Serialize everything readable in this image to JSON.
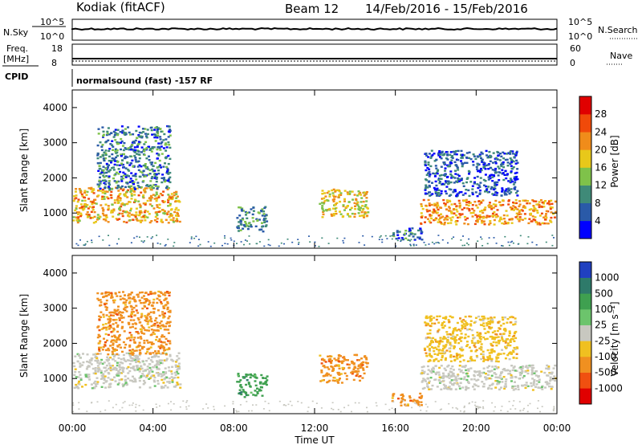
{
  "header": {
    "station": "Kodiak (fitACF)",
    "beam": "Beam 12",
    "date_range": "14/Feb/2016 - 15/Feb/2016"
  },
  "strip_panels": {
    "nsky_label": "N.Sky",
    "nsky_ticks": [
      "10^5",
      "10^0"
    ],
    "nsearch_label": "N.Search",
    "nsearch_ticks": [
      "10^5",
      "10^0"
    ],
    "freq_label_1": "Freq.",
    "freq_label_2": "[MHz]",
    "freq_ticks": [
      "18",
      "8"
    ],
    "nave_label": "Nave",
    "nave_ticks": [
      "60",
      "0"
    ],
    "cpid_label": "CPID",
    "cpid_value": "normalsound (fast) -157 RF"
  },
  "chart_data": [
    {
      "type": "heatmap",
      "panel": "power",
      "ylabel": "Slant Range [km]",
      "xlabel": "",
      "xlim_hours": [
        0,
        24
      ],
      "ylim": [
        0,
        4500
      ],
      "yticks": [
        "4000",
        "3000",
        "2000",
        "1000"
      ],
      "yticks_values": [
        4000,
        3000,
        2000,
        1000
      ],
      "colorbar_label": "Power [dB]",
      "colorbar_ticks": [
        "28",
        "24",
        "20",
        "16",
        "12",
        "8",
        "4"
      ],
      "colorbar_colors": [
        "#0000ff",
        "#2a5aa8",
        "#3f8a78",
        "#7fc24a",
        "#e8c81a",
        "#f08c1a",
        "#f04a0a",
        "#e00000"
      ],
      "echo_regions": [
        {
          "t0": 0.0,
          "t1": 5.3,
          "r0": 750,
          "r1": 1750,
          "level": 20
        },
        {
          "t0": 1.2,
          "t1": 4.8,
          "r0": 1700,
          "r1": 3500,
          "level": 8
        },
        {
          "t0": 8.1,
          "t1": 9.6,
          "r0": 500,
          "r1": 1200,
          "level": 10
        },
        {
          "t0": 12.2,
          "t1": 14.6,
          "r0": 900,
          "r1": 1700,
          "level": 18
        },
        {
          "t0": 15.8,
          "t1": 17.3,
          "r0": 250,
          "r1": 600,
          "level": 8
        },
        {
          "t0": 17.2,
          "t1": 23.9,
          "r0": 700,
          "r1": 1400,
          "level": 22
        },
        {
          "t0": 17.4,
          "t1": 22.0,
          "r0": 1500,
          "r1": 2800,
          "level": 6
        }
      ]
    },
    {
      "type": "heatmap",
      "panel": "velocity",
      "ylabel": "Slant Range [km]",
      "xlabel": "Time UT",
      "xlim_hours": [
        0,
        24
      ],
      "ylim": [
        0,
        4500
      ],
      "yticks": [
        "4000",
        "3000",
        "2000",
        "1000"
      ],
      "yticks_values": [
        4000,
        3000,
        2000,
        1000
      ],
      "xticks": [
        "00:00",
        "04:00",
        "08:00",
        "12:00",
        "16:00",
        "20:00",
        "00:00"
      ],
      "xticks_hours": [
        0,
        4,
        8,
        12,
        16,
        20,
        24
      ],
      "colorbar_label": "Velocity [m s⁻¹]",
      "colorbar_ticks": [
        "1000",
        "500",
        "100",
        "25",
        "-25",
        "-100",
        "-500",
        "-1000"
      ],
      "colorbar_colors": [
        "#2040c0",
        "#2e7a6a",
        "#3fa050",
        "#6cc46c",
        "#c8c8c0",
        "#f0c020",
        "#f09020",
        "#f05010",
        "#e00000"
      ],
      "echo_regions": [
        {
          "t0": 0.0,
          "t1": 5.3,
          "r0": 750,
          "r1": 1750,
          "velocity": 0
        },
        {
          "t0": 1.2,
          "t1": 4.8,
          "r0": 1700,
          "r1": 3500,
          "velocity": -150
        },
        {
          "t0": 8.1,
          "t1": 9.6,
          "r0": 500,
          "r1": 1200,
          "velocity": 150
        },
        {
          "t0": 12.2,
          "t1": 14.6,
          "r0": 900,
          "r1": 1700,
          "velocity": -300
        },
        {
          "t0": 15.8,
          "t1": 17.3,
          "r0": 250,
          "r1": 600,
          "velocity": -120
        },
        {
          "t0": 17.2,
          "t1": 23.9,
          "r0": 700,
          "r1": 1400,
          "velocity": 0
        },
        {
          "t0": 17.4,
          "t1": 22.0,
          "r0": 1500,
          "r1": 2800,
          "velocity": -60
        }
      ]
    }
  ]
}
